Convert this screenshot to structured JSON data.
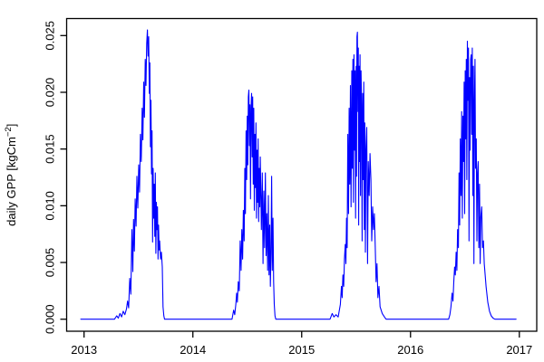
{
  "chart_data": {
    "type": "line",
    "title": "",
    "xlabel": "",
    "ylabel": "daily GPP [kgCm⁻²]",
    "ylabel_parts": {
      "prefix": "daily GPP [kgCm",
      "superscript": "−2",
      "suffix": "]"
    },
    "x_ticks": {
      "values": [
        2013,
        2014,
        2015,
        2016,
        2017
      ],
      "labels": [
        "2013",
        "2014",
        "2015",
        "2016",
        "2017"
      ]
    },
    "y_ticks": {
      "values": [
        0.0,
        0.005,
        0.01,
        0.015,
        0.02,
        0.025
      ],
      "labels": [
        "0.000",
        "0.005",
        "0.010",
        "0.015",
        "0.020",
        "0.025"
      ]
    },
    "xlim": [
      2012.84,
      2017.16
    ],
    "ylim": [
      -0.00106,
      0.0265
    ],
    "grid": false,
    "legend": null,
    "line_color": "#0000FF",
    "axis_color": "#000000",
    "background": "#FFFFFF",
    "series": [
      {
        "name": "daily GPP",
        "points": [
          [
            2012.97,
            0
          ],
          [
            2013.28,
            0
          ],
          [
            2013.3,
            0.0003
          ],
          [
            2013.315,
            0.0001
          ],
          [
            2013.33,
            0.0005
          ],
          [
            2013.345,
            0.0002
          ],
          [
            2013.36,
            0.0007
          ],
          [
            2013.375,
            0.0004
          ],
          [
            2013.39,
            0.0009
          ],
          [
            2013.4,
            0.0016
          ],
          [
            2013.41,
            0.001
          ],
          [
            2013.42,
            0.0036
          ],
          [
            2013.43,
            0.0022
          ],
          [
            2013.44,
            0.0079
          ],
          [
            2013.448,
            0.0042
          ],
          [
            2013.455,
            0.0088
          ],
          [
            2013.462,
            0.006
          ],
          [
            2013.47,
            0.0106
          ],
          [
            2013.478,
            0.0082
          ],
          [
            2013.486,
            0.0126
          ],
          [
            2013.494,
            0.0098
          ],
          [
            2013.502,
            0.0136
          ],
          [
            2013.51,
            0.0112
          ],
          [
            2013.518,
            0.0163
          ],
          [
            2013.526,
            0.0139
          ],
          [
            2013.534,
            0.0186
          ],
          [
            2013.541,
            0.0158
          ],
          [
            2013.548,
            0.0209
          ],
          [
            2013.555,
            0.0178
          ],
          [
            2013.562,
            0.0229
          ],
          [
            2013.569,
            0.0206
          ],
          [
            2013.576,
            0.0243
          ],
          [
            2013.582,
            0.0255
          ],
          [
            2013.588,
            0.0232
          ],
          [
            2013.594,
            0.0249
          ],
          [
            2013.6,
            0.0199
          ],
          [
            2013.605,
            0.0226
          ],
          [
            2013.61,
            0.0152
          ],
          [
            2013.615,
            0.0193
          ],
          [
            2013.62,
            0.0128
          ],
          [
            2013.625,
            0.0166
          ],
          [
            2013.63,
            0.0068
          ],
          [
            2013.635,
            0.0133
          ],
          [
            2013.64,
            0.0089
          ],
          [
            2013.645,
            0.0119
          ],
          [
            2013.65,
            0.0073
          ],
          [
            2013.655,
            0.0129
          ],
          [
            2013.66,
            0.0058
          ],
          [
            2013.665,
            0.0103
          ],
          [
            2013.67,
            0.0079
          ],
          [
            2013.675,
            0.0099
          ],
          [
            2013.68,
            0.0053
          ],
          [
            2013.685,
            0.0083
          ],
          [
            2013.69,
            0.0061
          ],
          [
            2013.695,
            0.0069
          ],
          [
            2013.703,
            0.0053
          ],
          [
            2013.711,
            0.0059
          ],
          [
            2013.719,
            0.0046
          ],
          [
            2013.726,
            0.0011
          ],
          [
            2013.733,
            0.0003
          ],
          [
            2013.74,
            0
          ],
          [
            2014.36,
            0
          ],
          [
            2014.375,
            0.0008
          ],
          [
            2014.385,
            0.0004
          ],
          [
            2014.395,
            0.0013
          ],
          [
            2014.402,
            0.0023
          ],
          [
            2014.409,
            0.0015
          ],
          [
            2014.417,
            0.0033
          ],
          [
            2014.426,
            0.0025
          ],
          [
            2014.435,
            0.0069
          ],
          [
            2014.443,
            0.0043
          ],
          [
            2014.45,
            0.0079
          ],
          [
            2014.457,
            0.0053
          ],
          [
            2014.464,
            0.0096
          ],
          [
            2014.471,
            0.0069
          ],
          [
            2014.477,
            0.0133
          ],
          [
            2014.483,
            0.0093
          ],
          [
            2014.489,
            0.0166
          ],
          [
            2014.495,
            0.0123
          ],
          [
            2014.5,
            0.0179
          ],
          [
            2014.505,
            0.0136
          ],
          [
            2014.51,
            0.0196
          ],
          [
            2014.515,
            0.0202
          ],
          [
            2014.52,
            0.0153
          ],
          [
            2014.525,
            0.0189
          ],
          [
            2014.53,
            0.0106
          ],
          [
            2014.535,
            0.0186
          ],
          [
            2014.54,
            0.0199
          ],
          [
            2014.545,
            0.0143
          ],
          [
            2014.55,
            0.0196
          ],
          [
            2014.555,
            0.0119
          ],
          [
            2014.56,
            0.0186
          ],
          [
            2014.565,
            0.0096
          ],
          [
            2014.57,
            0.0163
          ],
          [
            2014.575,
            0.0116
          ],
          [
            2014.58,
            0.0173
          ],
          [
            2014.585,
            0.0089
          ],
          [
            2014.59,
            0.0149
          ],
          [
            2014.595,
            0.0103
          ],
          [
            2014.6,
            0.0159
          ],
          [
            2014.605,
            0.0086
          ],
          [
            2014.61,
            0.0133
          ],
          [
            2014.615,
            0.0099
          ],
          [
            2014.62,
            0.0143
          ],
          [
            2014.63,
            0.0079
          ],
          [
            2014.638,
            0.0129
          ],
          [
            2014.645,
            0.0049
          ],
          [
            2014.652,
            0.0113
          ],
          [
            2014.659,
            0.0063
          ],
          [
            2014.666,
            0.0129
          ],
          [
            2014.673,
            0.0056
          ],
          [
            2014.68,
            0.0093
          ],
          [
            2014.687,
            0.0043
          ],
          [
            2014.694,
            0.0109
          ],
          [
            2014.7,
            0.0039
          ],
          [
            2014.706,
            0.0083
          ],
          [
            2014.712,
            0.0029
          ],
          [
            2014.718,
            0.0059
          ],
          [
            2014.724,
            0.0126
          ],
          [
            2014.73,
            0.0043
          ],
          [
            2014.736,
            0.0089
          ],
          [
            2014.742,
            0.0033
          ],
          [
            2014.748,
            0.0013
          ],
          [
            2014.755,
            0.0003
          ],
          [
            2014.762,
            0
          ],
          [
            2015.26,
            0
          ],
          [
            2015.28,
            0.0005
          ],
          [
            2015.295,
            0.0002
          ],
          [
            2015.315,
            0.0004
          ],
          [
            2015.335,
            0.0002
          ],
          [
            2015.355,
            0.0013
          ],
          [
            2015.365,
            0.0029
          ],
          [
            2015.372,
            0.0019
          ],
          [
            2015.379,
            0.0039
          ],
          [
            2015.386,
            0.0029
          ],
          [
            2015.393,
            0.0053
          ],
          [
            2015.4,
            0.0066
          ],
          [
            2015.406,
            0.0049
          ],
          [
            2015.412,
            0.0089
          ],
          [
            2015.418,
            0.0063
          ],
          [
            2015.424,
            0.0163
          ],
          [
            2015.43,
            0.0093
          ],
          [
            2015.436,
            0.0186
          ],
          [
            2015.442,
            0.0119
          ],
          [
            2015.448,
            0.0206
          ],
          [
            2015.454,
            0.0099
          ],
          [
            2015.46,
            0.0219
          ],
          [
            2015.465,
            0.0133
          ],
          [
            2015.47,
            0.0229
          ],
          [
            2015.475,
            0.0103
          ],
          [
            2015.48,
            0.0233
          ],
          [
            2015.485,
            0.0149
          ],
          [
            2015.49,
            0.0219
          ],
          [
            2015.495,
            0.0089
          ],
          [
            2015.5,
            0.0223
          ],
          [
            2015.504,
            0.0126
          ],
          [
            2015.508,
            0.0249
          ],
          [
            2015.512,
            0.0253
          ],
          [
            2015.516,
            0.0183
          ],
          [
            2015.52,
            0.0239
          ],
          [
            2015.524,
            0.0083
          ],
          [
            2015.528,
            0.0223
          ],
          [
            2015.532,
            0.0139
          ],
          [
            2015.536,
            0.0233
          ],
          [
            2015.54,
            0.0109
          ],
          [
            2015.545,
            0.0219
          ],
          [
            2015.55,
            0.0189
          ],
          [
            2015.555,
            0.0069
          ],
          [
            2015.56,
            0.0199
          ],
          [
            2015.565,
            0.0123
          ],
          [
            2015.57,
            0.0209
          ],
          [
            2015.575,
            0.0079
          ],
          [
            2015.58,
            0.0173
          ],
          [
            2015.585,
            0.0059
          ],
          [
            2015.59,
            0.0149
          ],
          [
            2015.598,
            0.0169
          ],
          [
            2015.605,
            0.0049
          ],
          [
            2015.612,
            0.0139
          ],
          [
            2015.62,
            0.0109
          ],
          [
            2015.628,
            0.0146
          ],
          [
            2015.636,
            0.0123
          ],
          [
            2015.644,
            0.0069
          ],
          [
            2015.652,
            0.0099
          ],
          [
            2015.66,
            0.0079
          ],
          [
            2015.668,
            0.0093
          ],
          [
            2015.676,
            0.0063
          ],
          [
            2015.684,
            0.0033
          ],
          [
            2015.692,
            0.0049
          ],
          [
            2015.7,
            0.0019
          ],
          [
            2015.71,
            0.0029
          ],
          [
            2015.72,
            0.0011
          ],
          [
            2015.74,
            0.0005
          ],
          [
            2015.76,
            0.0002
          ],
          [
            2015.775,
            0
          ],
          [
            2016.35,
            0
          ],
          [
            2016.362,
            0.0004
          ],
          [
            2016.372,
            0.0011
          ],
          [
            2016.382,
            0.0023
          ],
          [
            2016.39,
            0.0016
          ],
          [
            2016.398,
            0.0033
          ],
          [
            2016.405,
            0.0046
          ],
          [
            2016.412,
            0.0039
          ],
          [
            2016.419,
            0.0059
          ],
          [
            2016.426,
            0.0043
          ],
          [
            2016.433,
            0.0079
          ],
          [
            2016.44,
            0.0063
          ],
          [
            2016.446,
            0.0129
          ],
          [
            2016.452,
            0.0083
          ],
          [
            2016.458,
            0.0159
          ],
          [
            2016.464,
            0.0109
          ],
          [
            2016.47,
            0.0183
          ],
          [
            2016.476,
            0.0089
          ],
          [
            2016.482,
            0.0179
          ],
          [
            2016.488,
            0.0139
          ],
          [
            2016.493,
            0.0209
          ],
          [
            2016.498,
            0.0093
          ],
          [
            2016.503,
            0.0219
          ],
          [
            2016.508,
            0.0159
          ],
          [
            2016.513,
            0.0229
          ],
          [
            2016.518,
            0.0123
          ],
          [
            2016.523,
            0.0245
          ],
          [
            2016.528,
            0.0193
          ],
          [
            2016.533,
            0.0239
          ],
          [
            2016.538,
            0.0069
          ],
          [
            2016.543,
            0.0213
          ],
          [
            2016.548,
            0.0149
          ],
          [
            2016.553,
            0.0229
          ],
          [
            2016.558,
            0.0233
          ],
          [
            2016.563,
            0.0163
          ],
          [
            2016.568,
            0.0239
          ],
          [
            2016.573,
            0.0109
          ],
          [
            2016.578,
            0.0223
          ],
          [
            2016.583,
            0.0049
          ],
          [
            2016.588,
            0.0193
          ],
          [
            2016.593,
            0.0229
          ],
          [
            2016.598,
            0.0133
          ],
          [
            2016.604,
            0.0159
          ],
          [
            2016.61,
            0.0069
          ],
          [
            2016.616,
            0.0129
          ],
          [
            2016.622,
            0.0139
          ],
          [
            2016.628,
            0.0063
          ],
          [
            2016.634,
            0.0119
          ],
          [
            2016.64,
            0.0049
          ],
          [
            2016.646,
            0.0089
          ],
          [
            2016.654,
            0.0099
          ],
          [
            2016.662,
            0.0063
          ],
          [
            2016.67,
            0.0069
          ],
          [
            2016.678,
            0.0049
          ],
          [
            2016.686,
            0.0039
          ],
          [
            2016.694,
            0.0029
          ],
          [
            2016.71,
            0.0015
          ],
          [
            2016.726,
            0.0007
          ],
          [
            2016.742,
            0.0003
          ],
          [
            2016.758,
            0.0001
          ],
          [
            2016.775,
            0
          ],
          [
            2016.97,
            0
          ]
        ]
      }
    ]
  }
}
